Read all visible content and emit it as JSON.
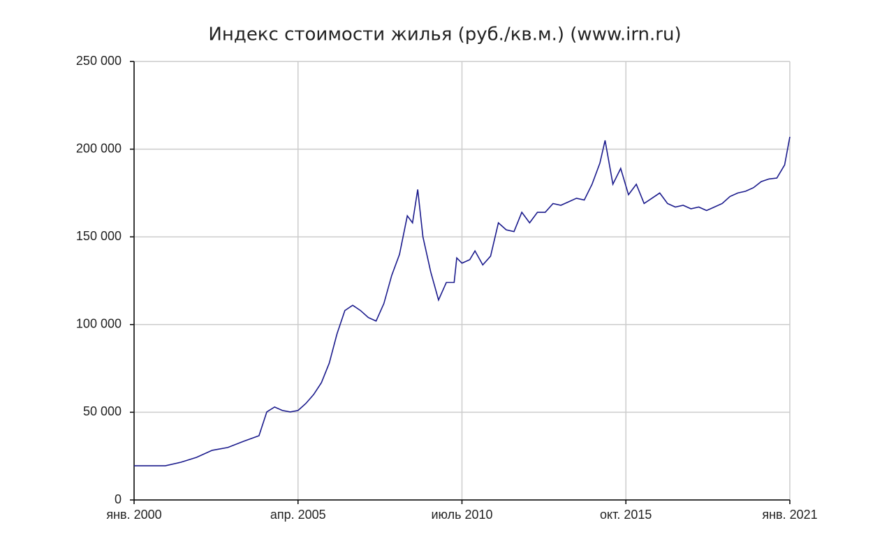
{
  "chart_data": {
    "type": "line",
    "title": "Индекс стоимости жилья (руб./кв.м.) (www.irn.ru)",
    "x": [
      "2000-01",
      "2001-01",
      "2001-07",
      "2002-01",
      "2002-07",
      "2003-01",
      "2003-07",
      "2004-01",
      "2004-04",
      "2004-07",
      "2004-10",
      "2005-01",
      "2005-04",
      "2005-07",
      "2005-10",
      "2006-01",
      "2006-04",
      "2006-07",
      "2006-10",
      "2007-01",
      "2007-04",
      "2007-07",
      "2007-10",
      "2008-01",
      "2008-04",
      "2008-07",
      "2008-10",
      "2008-12",
      "2009-02",
      "2009-04",
      "2009-07",
      "2009-10",
      "2010-01",
      "2010-04",
      "2010-05",
      "2010-07",
      "2010-10",
      "2010-12",
      "2011-03",
      "2011-06",
      "2011-09",
      "2011-12",
      "2012-03",
      "2012-06",
      "2012-09",
      "2012-12",
      "2013-03",
      "2013-06",
      "2013-09",
      "2013-12",
      "2014-03",
      "2014-06",
      "2014-09",
      "2014-12",
      "2015-02",
      "2015-05",
      "2015-08",
      "2015-11",
      "2016-02",
      "2016-05",
      "2016-08",
      "2016-11",
      "2017-02",
      "2017-05",
      "2017-08",
      "2017-11",
      "2018-02",
      "2018-05",
      "2018-08",
      "2018-11",
      "2019-02",
      "2019-05",
      "2019-08",
      "2019-11",
      "2020-02",
      "2020-05",
      "2020-08",
      "2020-11",
      "2021-01"
    ],
    "series": [
      {
        "color": "#1a1a8c",
        "values": [
          19500,
          19500,
          21500,
          24300,
          28300,
          29900,
          33400,
          36600,
          50200,
          53000,
          51000,
          50200,
          51000,
          55000,
          60100,
          66900,
          78000,
          94800,
          108000,
          111000,
          108000,
          104000,
          102000,
          112000,
          128000,
          140000,
          162000,
          158000,
          177000,
          150000,
          130000,
          114000,
          124000,
          124000,
          138000,
          135000,
          137000,
          142000,
          134000,
          139000,
          158000,
          154000,
          153000,
          164000,
          158000,
          164000,
          164000,
          169000,
          168000,
          170000,
          172000,
          171000,
          180000,
          192000,
          205000,
          180000,
          189000,
          174000,
          180000,
          169000,
          172000,
          175000,
          169000,
          167000,
          168000,
          166000,
          167000,
          165000,
          167000,
          169000,
          173000,
          175000,
          176000,
          178000,
          181500,
          183000,
          183500,
          191000,
          207000
        ]
      }
    ],
    "xlim": [
      "2000-01",
      "2021-01"
    ],
    "xticks": [
      {
        "value": "2000-01",
        "label": "янв. 2000"
      },
      {
        "value": "2005-04",
        "label": "апр. 2005"
      },
      {
        "value": "2010-07",
        "label": "июль 2010"
      },
      {
        "value": "2015-10",
        "label": "окт. 2015"
      },
      {
        "value": "2021-01",
        "label": "янв. 2021"
      }
    ],
    "ylim": [
      0,
      250000
    ],
    "yticks": [
      0,
      {
        "value": 50000,
        "label": "50 000"
      },
      {
        "value": 100000,
        "label": "100 000"
      },
      {
        "value": 150000,
        "label": "150 000"
      },
      {
        "value": 200000,
        "label": "200 000"
      },
      {
        "value": 250000,
        "label": "250 000"
      }
    ],
    "grid": true
  }
}
